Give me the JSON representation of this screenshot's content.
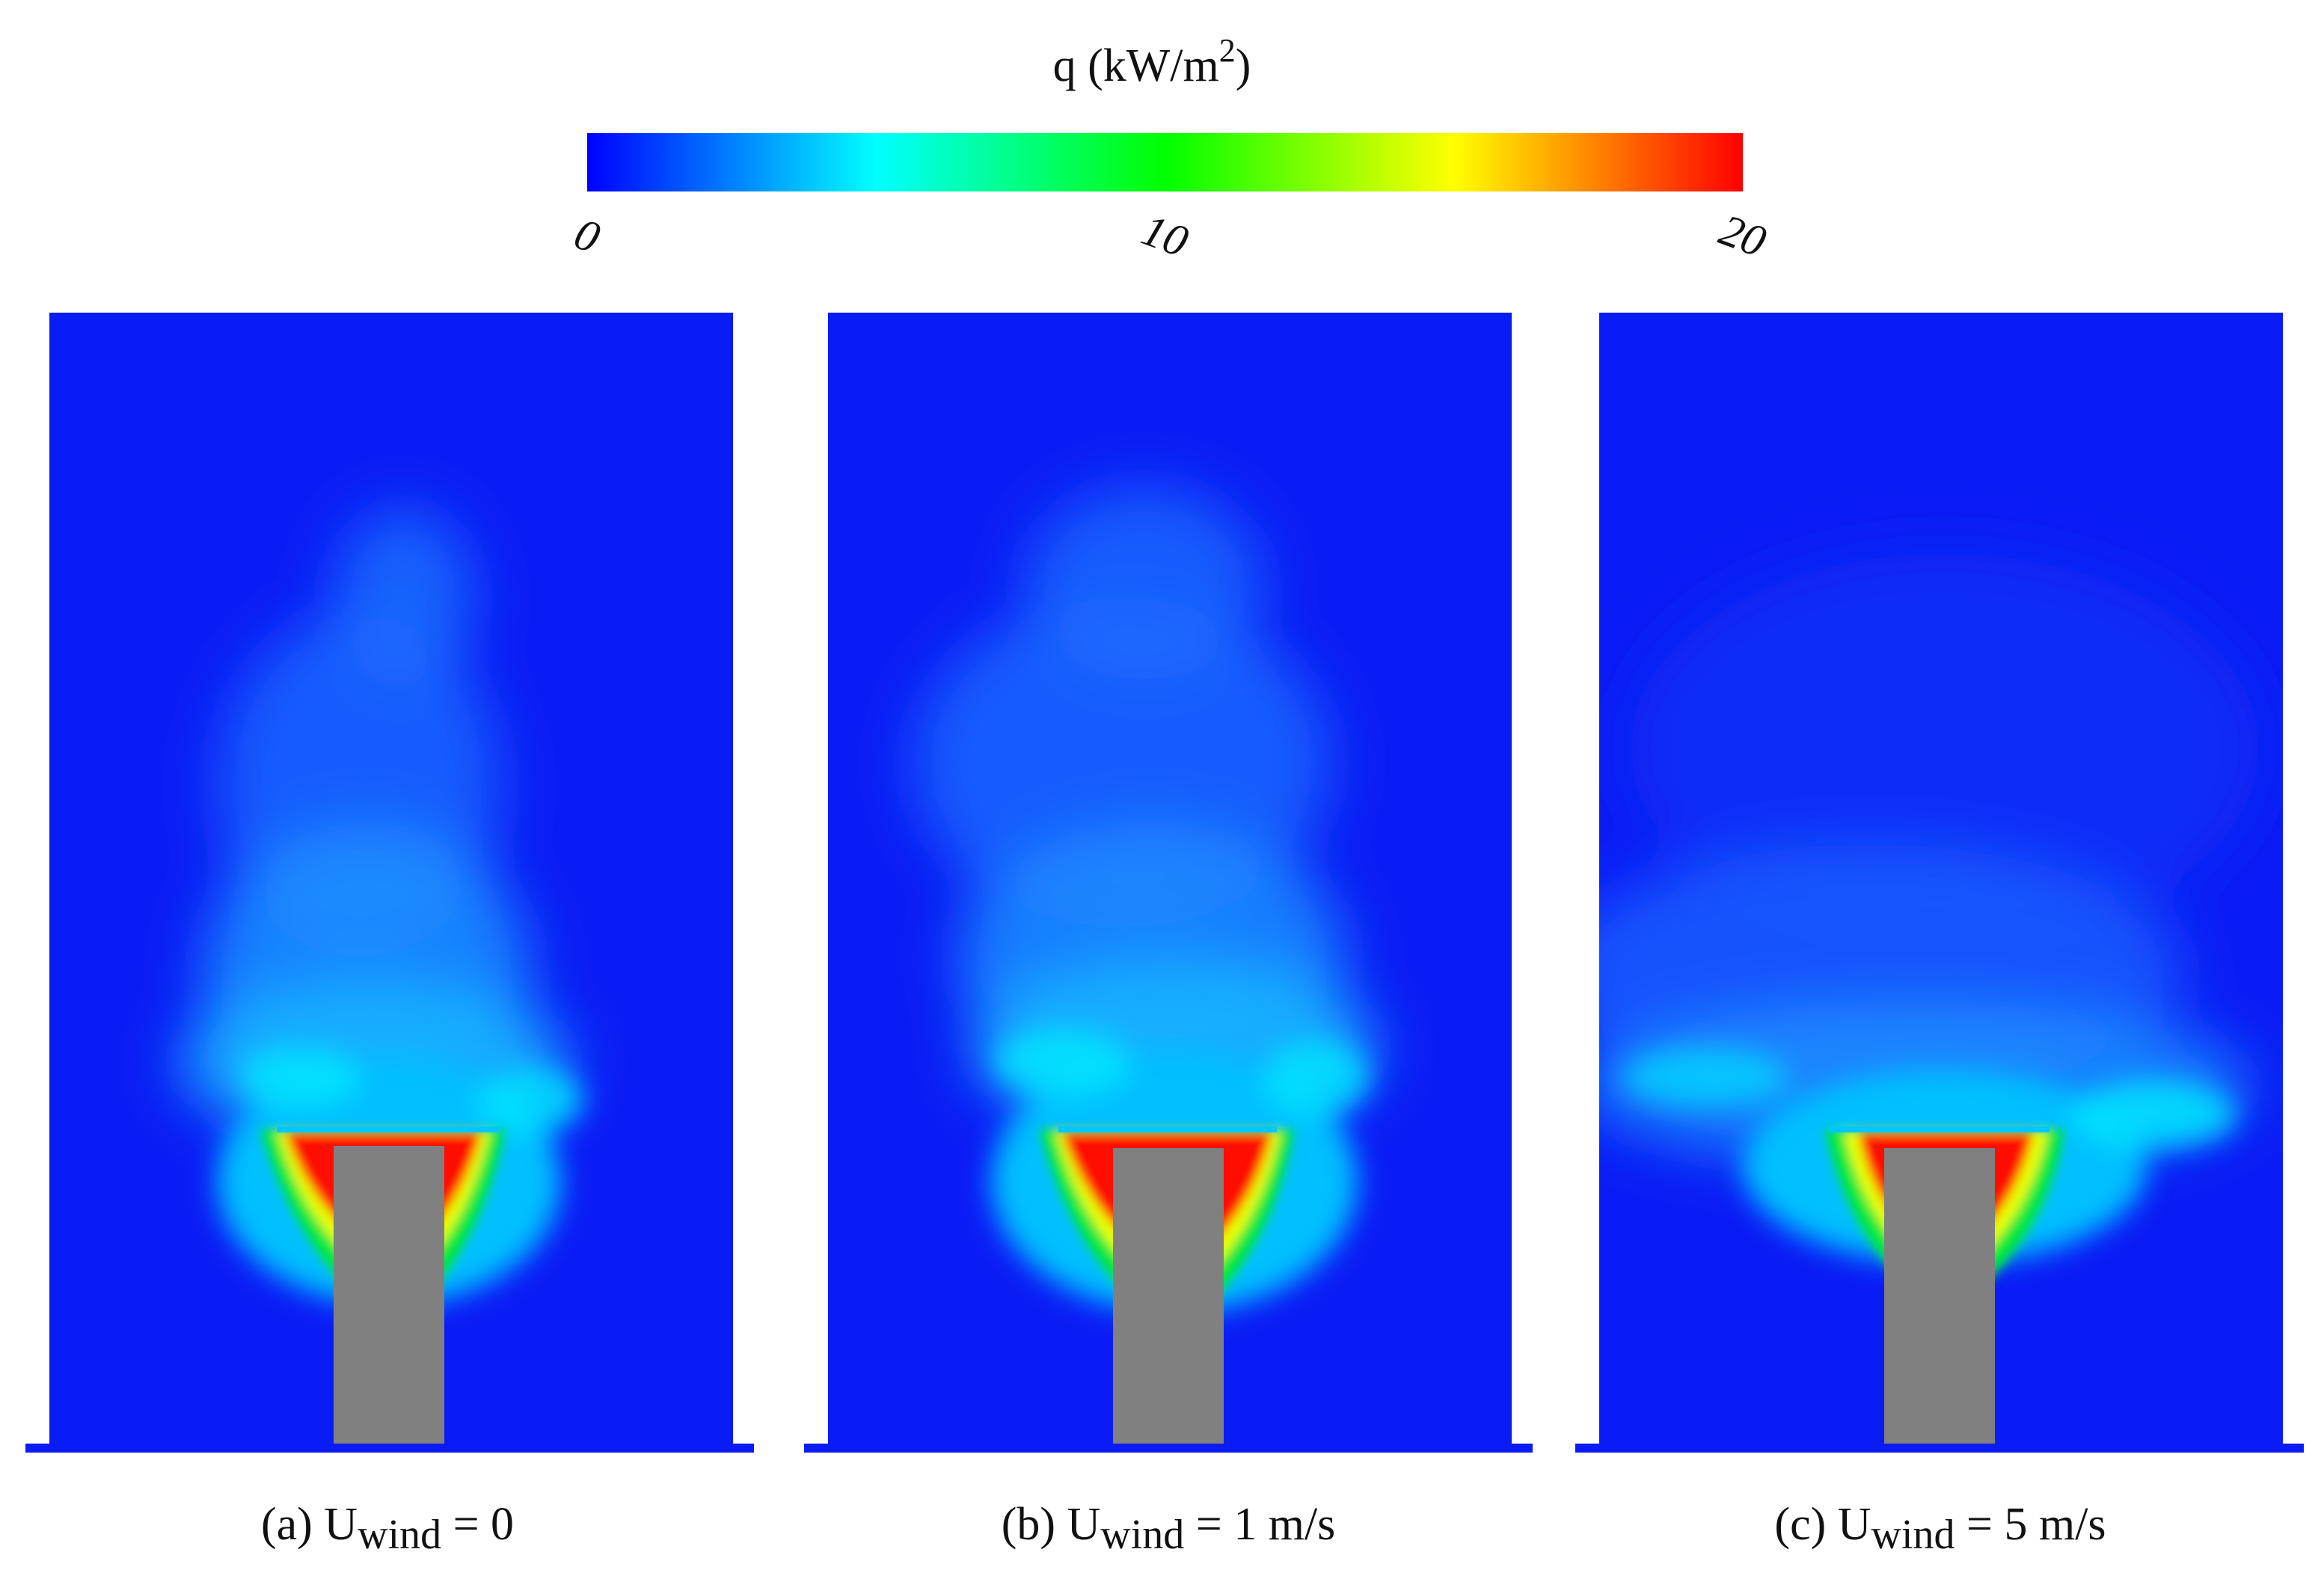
{
  "chart_data": {
    "type": "heatmap",
    "colorbar": {
      "title_main": "q (kW/m",
      "title_sup": "2",
      "title_end": ")",
      "min": 0,
      "max": 20,
      "ticks": [
        {
          "value": 0,
          "label": "0"
        },
        {
          "value": 10,
          "label": "10"
        },
        {
          "value": 20,
          "label": "20"
        }
      ],
      "colormap": [
        "#0000ff",
        "#0080ff",
        "#00ffff",
        "#00ff80",
        "#00ff00",
        "#80ff00",
        "#ffff00",
        "#ff8000",
        "#ff0000"
      ]
    },
    "background_level": 2,
    "panels": [
      {
        "prefix": "(a) U",
        "subscript": "wind",
        "suffix": " = 0",
        "wind_speed": 0,
        "flame_shape": "symmetric"
      },
      {
        "prefix": "(b) U",
        "subscript": "wind",
        "suffix": " = 1 m/s",
        "wind_speed": 1,
        "flame_shape": "symmetric"
      },
      {
        "prefix": "(c) U",
        "subscript": "wind",
        "suffix": " = 5 m/s",
        "wind_speed": 5,
        "flame_shape": "wind-flattened"
      }
    ],
    "colors": {
      "domain_blue": "#0a1cf5",
      "obstacle_gray": "#808080",
      "red": "#ff0a00",
      "yellow": "#e8ff00",
      "green": "#00e840",
      "cyan": "#00d8ff"
    }
  }
}
